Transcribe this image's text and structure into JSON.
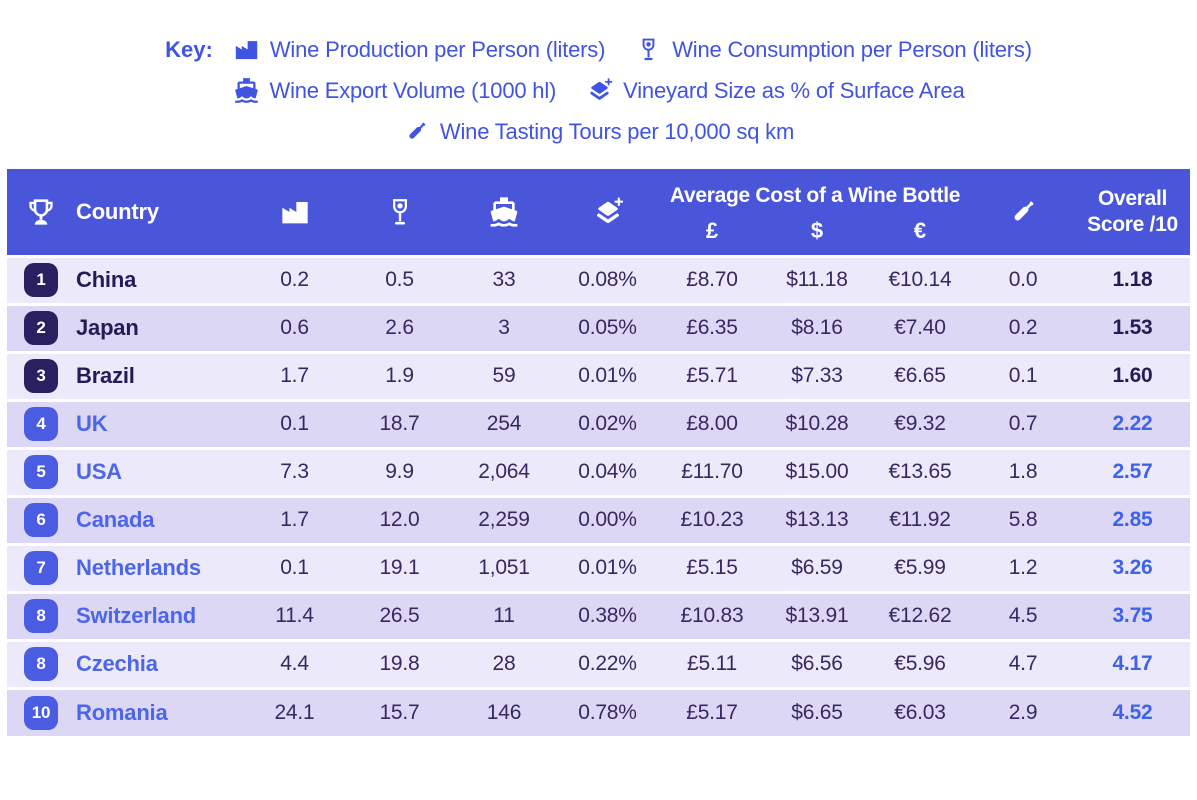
{
  "key": {
    "label": "Key:",
    "items": [
      {
        "icon": "factory-icon",
        "text": "Wine Production per Person (liters)"
      },
      {
        "icon": "wine-glass-icon",
        "text": "Wine Consumption per Person (liters)"
      },
      {
        "icon": "ship-icon",
        "text": "Wine Export Volume (1000 hl)"
      },
      {
        "icon": "layers-plus-icon",
        "text": "Vineyard Size as % of Surface Area"
      },
      {
        "icon": "wine-bottle-icon",
        "text": "Wine Tasting Tours per 10,000 sq km"
      }
    ]
  },
  "table": {
    "headers": {
      "rank_icon": "trophy-icon",
      "country": "Country",
      "production_icon": "factory-icon",
      "consumption_icon": "wine-glass-icon",
      "export_icon": "ship-icon",
      "vineyard_icon": "layers-plus-icon",
      "avg_cost": "Average Cost of a Wine Bottle",
      "currencies": [
        "£",
        "$",
        "€"
      ],
      "tours_icon": "wine-bottle-icon",
      "overall": "Overall Score /10"
    },
    "rows": [
      {
        "rank": "1",
        "country": "China",
        "production": "0.2",
        "consumption": "0.5",
        "export": "33",
        "vineyard": "0.08%",
        "gbp": "£8.70",
        "usd": "$11.18",
        "eur": "€10.14",
        "tours": "0.0",
        "score": "1.18"
      },
      {
        "rank": "2",
        "country": "Japan",
        "production": "0.6",
        "consumption": "2.6",
        "export": "3",
        "vineyard": "0.05%",
        "gbp": "£6.35",
        "usd": "$8.16",
        "eur": "€7.40",
        "tours": "0.2",
        "score": "1.53"
      },
      {
        "rank": "3",
        "country": "Brazil",
        "production": "1.7",
        "consumption": "1.9",
        "export": "59",
        "vineyard": "0.01%",
        "gbp": "£5.71",
        "usd": "$7.33",
        "eur": "€6.65",
        "tours": "0.1",
        "score": "1.60"
      },
      {
        "rank": "4",
        "country": "UK",
        "production": "0.1",
        "consumption": "18.7",
        "export": "254",
        "vineyard": "0.02%",
        "gbp": "£8.00",
        "usd": "$10.28",
        "eur": "€9.32",
        "tours": "0.7",
        "score": "2.22"
      },
      {
        "rank": "5",
        "country": "USA",
        "production": "7.3",
        "consumption": "9.9",
        "export": "2,064",
        "vineyard": "0.04%",
        "gbp": "£11.70",
        "usd": "$15.00",
        "eur": "€13.65",
        "tours": "1.8",
        "score": "2.57"
      },
      {
        "rank": "6",
        "country": "Canada",
        "production": "1.7",
        "consumption": "12.0",
        "export": "2,259",
        "vineyard": "0.00%",
        "gbp": "£10.23",
        "usd": "$13.13",
        "eur": "€11.92",
        "tours": "5.8",
        "score": "2.85"
      },
      {
        "rank": "7",
        "country": "Netherlands",
        "production": "0.1",
        "consumption": "19.1",
        "export": "1,051",
        "vineyard": "0.01%",
        "gbp": "£5.15",
        "usd": "$6.59",
        "eur": "€5.99",
        "tours": "1.2",
        "score": "3.26"
      },
      {
        "rank": "8",
        "country": "Switzerland",
        "production": "11.4",
        "consumption": "26.5",
        "export": "11",
        "vineyard": "0.38%",
        "gbp": "£10.83",
        "usd": "$13.91",
        "eur": "€12.62",
        "tours": "4.5",
        "score": "3.75"
      },
      {
        "rank": "8",
        "country": "Czechia",
        "production": "4.4",
        "consumption": "19.8",
        "export": "28",
        "vineyard": "0.22%",
        "gbp": "£5.11",
        "usd": "$6.56",
        "eur": "€5.96",
        "tours": "4.7",
        "score": "4.17"
      },
      {
        "rank": "10",
        "country": "Romania",
        "production": "24.1",
        "consumption": "15.7",
        "export": "146",
        "vineyard": "0.78%",
        "gbp": "£5.17",
        "usd": "$6.65",
        "eur": "€6.03",
        "tours": "2.9",
        "score": "4.52"
      }
    ]
  },
  "colors": {
    "header_bg": "#4a56da",
    "key_text": "#4153e2",
    "badge_top3": "#2a2061",
    "badge_rest": "#4a5ce2",
    "country_top3": "#241c55",
    "country_rest": "#4c66ea",
    "value_text": "#37295f",
    "score_rest": "#3e63e8",
    "row_light": "#ece9fa",
    "row_dark": "#ddd7f6"
  },
  "chart_data": {
    "type": "table",
    "title": "Country wine statistics ranking",
    "columns": [
      "Rank",
      "Country",
      "Wine Production per Person (liters)",
      "Wine Consumption per Person (liters)",
      "Wine Export Volume (1000 hl)",
      "Vineyard Size as % of Surface Area",
      "Average Cost of a Wine Bottle £",
      "Average Cost of a Wine Bottle $",
      "Average Cost of a Wine Bottle €",
      "Wine Tasting Tours per 10,000 sq km",
      "Overall Score /10"
    ],
    "rows": [
      [
        1,
        "China",
        0.2,
        0.5,
        33,
        "0.08%",
        8.7,
        11.18,
        10.14,
        0.0,
        1.18
      ],
      [
        2,
        "Japan",
        0.6,
        2.6,
        3,
        "0.05%",
        6.35,
        8.16,
        7.4,
        0.2,
        1.53
      ],
      [
        3,
        "Brazil",
        1.7,
        1.9,
        59,
        "0.01%",
        5.71,
        7.33,
        6.65,
        0.1,
        1.6
      ],
      [
        4,
        "UK",
        0.1,
        18.7,
        254,
        "0.02%",
        8.0,
        10.28,
        9.32,
        0.7,
        2.22
      ],
      [
        5,
        "USA",
        7.3,
        9.9,
        2064,
        "0.04%",
        11.7,
        15.0,
        13.65,
        1.8,
        2.57
      ],
      [
        6,
        "Canada",
        1.7,
        12.0,
        2259,
        "0.00%",
        10.23,
        13.13,
        11.92,
        5.8,
        2.85
      ],
      [
        7,
        "Netherlands",
        0.1,
        19.1,
        1051,
        "0.01%",
        5.15,
        6.59,
        5.99,
        1.2,
        3.26
      ],
      [
        8,
        "Switzerland",
        11.4,
        26.5,
        11,
        "0.38%",
        10.83,
        13.91,
        12.62,
        4.5,
        3.75
      ],
      [
        8,
        "Czechia",
        4.4,
        19.8,
        28,
        "0.22%",
        5.11,
        6.56,
        5.96,
        4.7,
        4.17
      ],
      [
        10,
        "Romania",
        24.1,
        15.7,
        146,
        "0.78%",
        5.17,
        6.65,
        6.03,
        2.9,
        4.52
      ]
    ]
  }
}
